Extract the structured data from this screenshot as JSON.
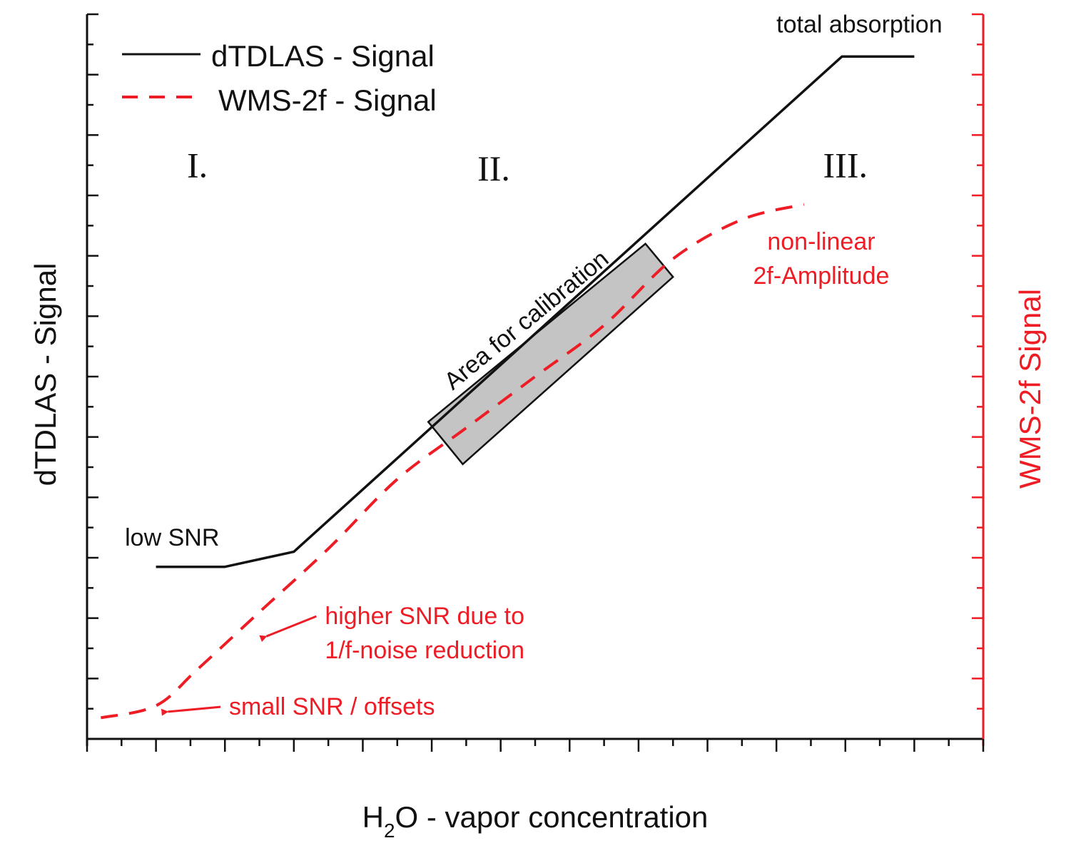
{
  "colors": {
    "primary": "#111111",
    "accent": "#ee1c24",
    "box_fill": "#c4c4c4"
  },
  "chart_data": {
    "type": "line",
    "title": "",
    "xlabel_parts": [
      "H",
      "2",
      "O -  vapor concentration"
    ],
    "ylabel_left": "dTDLAS - Signal",
    "ylabel_right": "WMS-2f Signal",
    "x_range": [
      0,
      13
    ],
    "y_range": [
      0,
      12
    ],
    "legend": {
      "position": "top-left",
      "entries": [
        {
          "label": "dTDLAS - Signal",
          "style": "solid"
        },
        {
          "label": "WMS-2f - Signal",
          "style": "dashed"
        }
      ]
    },
    "series": [
      {
        "name": "dTDLAS - Signal",
        "x": [
          1.0,
          2.0,
          3.0,
          10.95,
          12.0
        ],
        "y": [
          2.85,
          2.85,
          3.1,
          11.3,
          11.3
        ]
      },
      {
        "name": "WMS-2f - Signal",
        "x": [
          0.2,
          1.0,
          1.6,
          2.5,
          3.5,
          4.5,
          5.5,
          6.5,
          7.5,
          8.5,
          9.5,
          10.4
        ],
        "y": [
          0.35,
          0.55,
          1.15,
          2.1,
          3.15,
          4.3,
          5.15,
          6.0,
          6.85,
          7.95,
          8.6,
          8.85
        ]
      }
    ],
    "regions": [
      {
        "label": "I.",
        "x": 1.6,
        "y": 9.3
      },
      {
        "label": "II.",
        "x": 5.9,
        "y": 9.25
      },
      {
        "label": "III.",
        "x": 11.0,
        "y": 9.3
      }
    ],
    "calibration_box": {
      "label": "Area for calibration",
      "corners": [
        [
          4.95,
          5.25
        ],
        [
          8.1,
          8.2
        ],
        [
          8.5,
          7.65
        ],
        [
          5.45,
          4.55
        ]
      ]
    },
    "annotations": [
      {
        "key": "low_snr",
        "text": [
          "low SNR"
        ],
        "x": 0.55,
        "y": 3.2,
        "color": "primary"
      },
      {
        "key": "total_absorption",
        "text": [
          "total absorption"
        ],
        "x": 10.0,
        "y": 11.7,
        "color": "primary"
      },
      {
        "key": "nonlinear",
        "text": [
          "non-linear",
          "2f-Amplitude"
        ],
        "x": 10.65,
        "y": 8.1,
        "color": "accent",
        "anchor": "middle"
      },
      {
        "key": "higher_snr",
        "text": [
          "higher SNR due to",
          "1/f-noise reduction"
        ],
        "x": 3.45,
        "y": 1.9,
        "color": "accent",
        "arrow_to": [
          2.5,
          1.7
        ]
      },
      {
        "key": "small_snr",
        "text": [
          "small SNR / offsets"
        ],
        "x": 2.06,
        "y": 0.4,
        "color": "accent",
        "arrow_to": [
          1.07,
          0.45
        ]
      }
    ]
  }
}
